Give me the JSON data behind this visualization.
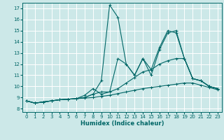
{
  "xlabel": "Humidex (Indice chaleur)",
  "bg_color": "#cce8e8",
  "line_color": "#006666",
  "grid_color": "#ffffff",
  "xlim": [
    -0.5,
    23.5
  ],
  "ylim": [
    7.7,
    17.5
  ],
  "yticks": [
    8,
    9,
    10,
    11,
    12,
    13,
    14,
    15,
    16,
    17
  ],
  "xticks": [
    0,
    1,
    2,
    3,
    4,
    5,
    6,
    7,
    8,
    9,
    10,
    11,
    12,
    13,
    14,
    15,
    16,
    17,
    18,
    19,
    20,
    21,
    22,
    23
  ],
  "series": [
    {
      "x": [
        0,
        1,
        2,
        3,
        4,
        5,
        6,
        7,
        8,
        9,
        10,
        11,
        12,
        13,
        14,
        15,
        16,
        17,
        18,
        19,
        20,
        21,
        22,
        23
      ],
      "y": [
        8.7,
        8.5,
        8.6,
        8.7,
        8.8,
        8.85,
        8.9,
        9.0,
        9.3,
        10.5,
        17.3,
        16.2,
        12.0,
        11.0,
        12.5,
        11.0,
        13.3,
        14.8,
        15.0,
        12.5,
        10.7,
        10.5,
        10.0,
        9.8
      ]
    },
    {
      "x": [
        0,
        1,
        2,
        3,
        4,
        5,
        6,
        7,
        8,
        9,
        10,
        11,
        12,
        13,
        14,
        15,
        16,
        17,
        18,
        19,
        20,
        21,
        22,
        23
      ],
      "y": [
        8.7,
        8.5,
        8.6,
        8.7,
        8.8,
        8.85,
        8.9,
        9.0,
        9.3,
        9.5,
        9.5,
        12.5,
        12.0,
        11.0,
        12.5,
        11.5,
        13.5,
        15.0,
        14.8,
        12.5,
        10.7,
        10.5,
        10.0,
        9.8
      ]
    },
    {
      "x": [
        0,
        1,
        2,
        3,
        4,
        5,
        6,
        7,
        8,
        9,
        10,
        11,
        12,
        13,
        14,
        15,
        16,
        17,
        18,
        19,
        20,
        21,
        22,
        23
      ],
      "y": [
        8.7,
        8.5,
        8.6,
        8.7,
        8.8,
        8.85,
        8.9,
        9.2,
        9.8,
        9.3,
        9.5,
        9.8,
        10.3,
        10.8,
        11.3,
        11.5,
        12.0,
        12.3,
        12.5,
        12.5,
        10.7,
        10.5,
        10.0,
        9.8
      ]
    },
    {
      "x": [
        0,
        1,
        2,
        3,
        4,
        5,
        6,
        7,
        8,
        9,
        10,
        11,
        12,
        13,
        14,
        15,
        16,
        17,
        18,
        19,
        20,
        21,
        22,
        23
      ],
      "y": [
        8.7,
        8.5,
        8.6,
        8.7,
        8.8,
        8.85,
        8.9,
        8.95,
        9.0,
        9.1,
        9.2,
        9.35,
        9.5,
        9.65,
        9.8,
        9.9,
        10.0,
        10.1,
        10.2,
        10.3,
        10.3,
        10.1,
        9.9,
        9.7
      ]
    }
  ]
}
